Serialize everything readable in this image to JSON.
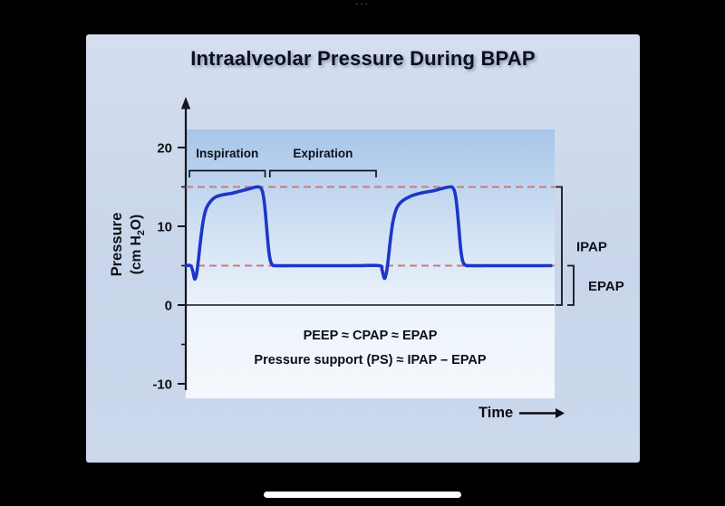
{
  "chrome": {
    "ellipsis": "···"
  },
  "slide": {
    "title": "Intraalveolar Pressure During BPAP",
    "annotations": {
      "line1": "PEEP ≈ CPAP ≈ EPAP",
      "line2": "Pressure support (PS) ≈ IPAP – EPAP"
    },
    "time_label": "Time"
  },
  "chart_data": {
    "type": "line",
    "title": "Intraalveolar Pressure During BPAP",
    "xlabel": "Time",
    "ylabel": "Pressure (cm H₂O)",
    "ylabel_parts": {
      "line1": "Pressure",
      "pre": "(cm H",
      "sub": "2",
      "post": "O)"
    },
    "ylim": [
      -13,
      22
    ],
    "x_range": [
      0,
      100
    ],
    "yticks": [
      20,
      10,
      0,
      -10
    ],
    "yticks_minor": [
      15,
      5,
      -5
    ],
    "grid": false,
    "reference_lines": [
      {
        "label": "IPAP",
        "value": 15,
        "color": "#c97a7a"
      },
      {
        "label": "EPAP",
        "value": 5,
        "color": "#c97a7a"
      }
    ],
    "phases": [
      {
        "label": "Inspiration",
        "t_start": 1.0,
        "t_end": 21.5
      },
      {
        "label": "Expiration",
        "t_start": 22.8,
        "t_end": 51.6
      }
    ],
    "brackets": [
      {
        "label": "IPAP",
        "from": 0,
        "to": 15
      },
      {
        "label": "EPAP",
        "from": 0,
        "to": 5
      }
    ],
    "series": [
      {
        "name": "Intraalveolar pressure",
        "color": "#1d36c9",
        "points": [
          [
            0,
            5
          ],
          [
            1.3,
            5
          ],
          [
            1.9,
            4.3
          ],
          [
            2.4,
            3.3
          ],
          [
            2.9,
            3.9
          ],
          [
            3.4,
            5.6
          ],
          [
            4,
            8.2
          ],
          [
            4.7,
            10.6
          ],
          [
            5.5,
            12.2
          ],
          [
            6.6,
            13.1
          ],
          [
            8,
            13.7
          ],
          [
            10,
            14
          ],
          [
            12.5,
            14.2
          ],
          [
            15,
            14.5
          ],
          [
            17.5,
            14.8
          ],
          [
            19.3,
            15
          ],
          [
            20.3,
            14.9
          ],
          [
            20.9,
            14.2
          ],
          [
            21.4,
            12.6
          ],
          [
            21.9,
            10
          ],
          [
            22.4,
            7.3
          ],
          [
            22.9,
            5.7
          ],
          [
            23.5,
            5.1
          ],
          [
            24.5,
            5
          ],
          [
            30,
            5
          ],
          [
            38,
            5
          ],
          [
            46,
            5
          ],
          [
            52.5,
            5
          ],
          [
            53.2,
            4.5
          ],
          [
            53.8,
            3.4
          ],
          [
            54.3,
            3.9
          ],
          [
            54.8,
            5.4
          ],
          [
            55.4,
            8
          ],
          [
            56.1,
            10.4
          ],
          [
            57,
            12.1
          ],
          [
            58.2,
            13
          ],
          [
            60,
            13.6
          ],
          [
            62,
            14
          ],
          [
            64.5,
            14.3
          ],
          [
            67,
            14.5
          ],
          [
            69.5,
            14.8
          ],
          [
            71.5,
            15
          ],
          [
            72.4,
            14.9
          ],
          [
            73,
            14.2
          ],
          [
            73.5,
            12.6
          ],
          [
            74,
            10
          ],
          [
            74.5,
            7.3
          ],
          [
            75,
            5.7
          ],
          [
            75.7,
            5.1
          ],
          [
            77,
            5
          ],
          [
            82,
            5
          ],
          [
            90,
            5
          ],
          [
            99,
            5
          ]
        ]
      }
    ]
  }
}
